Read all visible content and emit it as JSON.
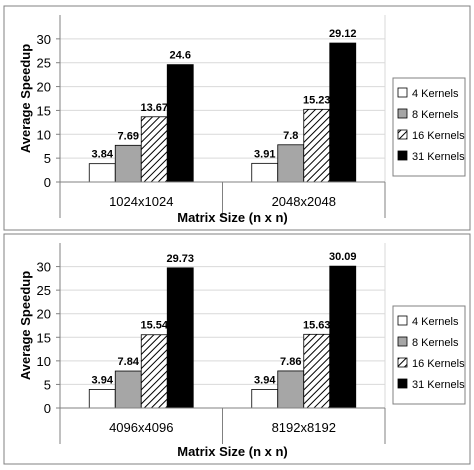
{
  "chart_data": [
    {
      "type": "bar",
      "ylabel": "Average Speedup",
      "xlabel": "Matrix Size (n x n)",
      "ylim": [
        0,
        35
      ],
      "yticks": [
        0,
        5,
        10,
        15,
        20,
        25,
        30
      ],
      "grid": true,
      "legend_position": "right",
      "categories": [
        "1024x1024",
        "2048x2048"
      ],
      "series": [
        {
          "name": "4 Kernels",
          "values": [
            3.84,
            3.91
          ]
        },
        {
          "name": "8 Kernels",
          "values": [
            7.69,
            7.8
          ]
        },
        {
          "name": "16 Kernels",
          "values": [
            13.67,
            15.23
          ]
        },
        {
          "name": "31 Kernels",
          "values": [
            24.6,
            29.12
          ]
        }
      ],
      "data_labels": [
        [
          "3.84",
          "3.91"
        ],
        [
          "7.69",
          "7.8"
        ],
        [
          "13.67",
          "15.23"
        ],
        [
          "24.6",
          "29.12"
        ]
      ]
    },
    {
      "type": "bar",
      "ylabel": "Average Speedup",
      "xlabel": "Matrix Size (n x n)",
      "ylim": [
        0,
        35
      ],
      "yticks": [
        0,
        5,
        10,
        15,
        20,
        25,
        30
      ],
      "grid": true,
      "legend_position": "right",
      "categories": [
        "4096x4096",
        "8192x8192"
      ],
      "series": [
        {
          "name": "4 Kernels",
          "values": [
            3.94,
            3.94
          ]
        },
        {
          "name": "8 Kernels",
          "values": [
            7.84,
            7.86
          ]
        },
        {
          "name": "16 Kernels",
          "values": [
            15.54,
            15.63
          ]
        },
        {
          "name": "31 Kernels",
          "values": [
            29.73,
            30.09
          ]
        }
      ],
      "data_labels": [
        [
          "3.94",
          "3.94"
        ],
        [
          "7.84",
          "7.86"
        ],
        [
          "15.54",
          "15.63"
        ],
        [
          "29.73",
          "30.09"
        ]
      ]
    }
  ],
  "series_styles": [
    {
      "fill": "#ffffff",
      "pattern": "none"
    },
    {
      "fill": "#a6a6a6",
      "pattern": "none"
    },
    {
      "fill": "#ffffff",
      "pattern": "diagonal-hatch"
    },
    {
      "fill": "#000000",
      "pattern": "none"
    }
  ],
  "colors": {
    "grid": "#d9d9d9",
    "border": "#808080",
    "bar_outline": "#000000",
    "text": "#000000"
  }
}
